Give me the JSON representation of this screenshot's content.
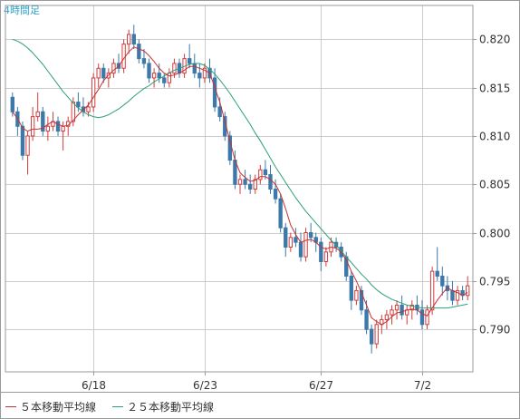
{
  "chart_data": {
    "type": "candlestick",
    "period_label": "4時間足",
    "x_tick_labels": [
      "6/18",
      "6/23",
      "6/27",
      "7/2"
    ],
    "x_tick_index": [
      16,
      38,
      61,
      81
    ],
    "y_ticks": [
      0.79,
      0.795,
      0.8,
      0.805,
      0.81,
      0.815,
      0.82
    ],
    "y_tick_labels": [
      "0.790",
      "0.795",
      "0.800",
      "0.805",
      "0.810",
      "0.815",
      "0.820"
    ],
    "ylim": [
      0.7856,
      0.8235
    ],
    "grid": true,
    "legend_position": "bottom-left",
    "colors": {
      "up": "#d23c3c",
      "down": "#3c78aa",
      "ma5": "#c83232",
      "ma25": "#2aa078",
      "grid": "#cccccc",
      "frame": "#9a9a9a"
    },
    "series": [
      {
        "name": "５本移動平均線",
        "color": "#c83232"
      },
      {
        "name": "２５本移動平均線",
        "color": "#2aa078"
      }
    ],
    "candles": [
      [
        0.814,
        0.8145,
        0.812,
        0.8125
      ],
      [
        0.8125,
        0.813,
        0.81,
        0.811
      ],
      [
        0.811,
        0.8115,
        0.8075,
        0.808
      ],
      [
        0.808,
        0.8105,
        0.806,
        0.81
      ],
      [
        0.81,
        0.813,
        0.8095,
        0.812
      ],
      [
        0.812,
        0.8145,
        0.8115,
        0.8125
      ],
      [
        0.8125,
        0.813,
        0.81,
        0.8105
      ],
      [
        0.8105,
        0.812,
        0.8095,
        0.811
      ],
      [
        0.811,
        0.8125,
        0.8105,
        0.8115
      ],
      [
        0.8115,
        0.812,
        0.81,
        0.8105
      ],
      [
        0.8105,
        0.8115,
        0.8085,
        0.811
      ],
      [
        0.811,
        0.812,
        0.81,
        0.8115
      ],
      [
        0.8115,
        0.814,
        0.811,
        0.8135
      ],
      [
        0.8135,
        0.8145,
        0.8125,
        0.813
      ],
      [
        0.813,
        0.814,
        0.812,
        0.8125
      ],
      [
        0.8125,
        0.8135,
        0.812,
        0.813
      ],
      [
        0.813,
        0.8165,
        0.8125,
        0.816
      ],
      [
        0.816,
        0.8175,
        0.815,
        0.817
      ],
      [
        0.817,
        0.8175,
        0.8155,
        0.816
      ],
      [
        0.816,
        0.817,
        0.815,
        0.8165
      ],
      [
        0.8165,
        0.818,
        0.816,
        0.8175
      ],
      [
        0.8175,
        0.8185,
        0.8165,
        0.817
      ],
      [
        0.817,
        0.82,
        0.8165,
        0.8195
      ],
      [
        0.8195,
        0.821,
        0.8185,
        0.8205
      ],
      [
        0.8205,
        0.8215,
        0.819,
        0.8195
      ],
      [
        0.8195,
        0.82,
        0.8175,
        0.818
      ],
      [
        0.818,
        0.819,
        0.817,
        0.8175
      ],
      [
        0.8175,
        0.818,
        0.8155,
        0.816
      ],
      [
        0.816,
        0.817,
        0.815,
        0.8165
      ],
      [
        0.8165,
        0.8175,
        0.8155,
        0.816
      ],
      [
        0.816,
        0.8165,
        0.815,
        0.8155
      ],
      [
        0.8155,
        0.817,
        0.815,
        0.8165
      ],
      [
        0.8165,
        0.818,
        0.816,
        0.8175
      ],
      [
        0.8175,
        0.818,
        0.816,
        0.8165
      ],
      [
        0.8165,
        0.8185,
        0.816,
        0.818
      ],
      [
        0.818,
        0.8195,
        0.817,
        0.8175
      ],
      [
        0.8175,
        0.8185,
        0.816,
        0.8165
      ],
      [
        0.8165,
        0.8175,
        0.815,
        0.816
      ],
      [
        0.816,
        0.8175,
        0.8155,
        0.817
      ],
      [
        0.817,
        0.818,
        0.8155,
        0.816
      ],
      [
        0.816,
        0.817,
        0.8125,
        0.813
      ],
      [
        0.813,
        0.814,
        0.8115,
        0.812
      ],
      [
        0.812,
        0.8125,
        0.8095,
        0.81
      ],
      [
        0.81,
        0.8105,
        0.807,
        0.8075
      ],
      [
        0.8075,
        0.8085,
        0.8045,
        0.805
      ],
      [
        0.805,
        0.806,
        0.804,
        0.8055
      ],
      [
        0.8055,
        0.8065,
        0.8045,
        0.805
      ],
      [
        0.805,
        0.806,
        0.804,
        0.8045
      ],
      [
        0.8045,
        0.806,
        0.804,
        0.8055
      ],
      [
        0.8055,
        0.807,
        0.805,
        0.8065
      ],
      [
        0.8065,
        0.8075,
        0.8055,
        0.806
      ],
      [
        0.806,
        0.807,
        0.804,
        0.8045
      ],
      [
        0.8045,
        0.8055,
        0.803,
        0.8035
      ],
      [
        0.8035,
        0.804,
        0.8,
        0.8005
      ],
      [
        0.8005,
        0.801,
        0.7975,
        0.7985
      ],
      [
        0.7985,
        0.8,
        0.798,
        0.7995
      ],
      [
        0.7995,
        0.8005,
        0.7985,
        0.799
      ],
      [
        0.799,
        0.8,
        0.797,
        0.7975
      ],
      [
        0.7975,
        0.8005,
        0.797,
        0.8
      ],
      [
        0.8,
        0.801,
        0.799,
        0.7995
      ],
      [
        0.7995,
        0.8,
        0.798,
        0.799
      ],
      [
        0.799,
        0.7995,
        0.796,
        0.797
      ],
      [
        0.797,
        0.7985,
        0.7965,
        0.798
      ],
      [
        0.798,
        0.7995,
        0.7975,
        0.799
      ],
      [
        0.799,
        0.7995,
        0.798,
        0.7985
      ],
      [
        0.7985,
        0.799,
        0.797,
        0.7975
      ],
      [
        0.7975,
        0.798,
        0.795,
        0.7955
      ],
      [
        0.7955,
        0.796,
        0.792,
        0.793
      ],
      [
        0.793,
        0.7945,
        0.7925,
        0.794
      ],
      [
        0.794,
        0.7945,
        0.7915,
        0.792
      ],
      [
        0.792,
        0.793,
        0.7895,
        0.79
      ],
      [
        0.79,
        0.7905,
        0.7875,
        0.7885
      ],
      [
        0.7885,
        0.791,
        0.788,
        0.7905
      ],
      [
        0.7905,
        0.7915,
        0.7895,
        0.791
      ],
      [
        0.791,
        0.792,
        0.79,
        0.7915
      ],
      [
        0.7915,
        0.7925,
        0.7905,
        0.792
      ],
      [
        0.792,
        0.793,
        0.791,
        0.7925
      ],
      [
        0.7925,
        0.7935,
        0.791,
        0.7915
      ],
      [
        0.7915,
        0.7925,
        0.7905,
        0.792
      ],
      [
        0.792,
        0.793,
        0.791,
        0.7925
      ],
      [
        0.7925,
        0.7935,
        0.7915,
        0.792
      ],
      [
        0.792,
        0.793,
        0.79,
        0.7905
      ],
      [
        0.7905,
        0.7925,
        0.79,
        0.792
      ],
      [
        0.792,
        0.7965,
        0.7915,
        0.796
      ],
      [
        0.796,
        0.7985,
        0.795,
        0.7955
      ],
      [
        0.7955,
        0.7965,
        0.7935,
        0.7945
      ],
      [
        0.7945,
        0.7955,
        0.793,
        0.794
      ],
      [
        0.794,
        0.795,
        0.7925,
        0.793
      ],
      [
        0.793,
        0.7945,
        0.7925,
        0.794
      ],
      [
        0.794,
        0.7945,
        0.793,
        0.7935
      ],
      [
        0.7935,
        0.7955,
        0.793,
        0.7945
      ]
    ],
    "ma5": [
      0.8125,
      0.8118,
      0.8108,
      0.8105,
      0.8107,
      0.8107,
      0.8108,
      0.8112,
      0.8115,
      0.8112,
      0.811,
      0.8111,
      0.8116,
      0.8122,
      0.8127,
      0.8132,
      0.814,
      0.8148,
      0.8157,
      0.8163,
      0.8168,
      0.8172,
      0.818,
      0.8187,
      0.8192,
      0.819,
      0.8188,
      0.8183,
      0.8177,
      0.817,
      0.8165,
      0.8162,
      0.8163,
      0.8165,
      0.8168,
      0.8172,
      0.8172,
      0.817,
      0.8168,
      0.8165,
      0.815,
      0.8135,
      0.8115,
      0.8095,
      0.8075,
      0.8062,
      0.8057,
      0.8053,
      0.8054,
      0.8058,
      0.8058,
      0.8055,
      0.805,
      0.804,
      0.8025,
      0.8008,
      0.7998,
      0.799,
      0.7992,
      0.7993,
      0.799,
      0.7985,
      0.7983,
      0.7985,
      0.7984,
      0.798,
      0.7972,
      0.796,
      0.795,
      0.7938,
      0.7925,
      0.7912,
      0.7908,
      0.7905,
      0.7908,
      0.7913,
      0.7917,
      0.7918,
      0.792,
      0.7921,
      0.792,
      0.7916,
      0.7914,
      0.7922,
      0.793,
      0.7937,
      0.7943,
      0.794,
      0.7938,
      0.7935,
      0.7938
    ],
    "ma25": [
      0.82,
      0.8198,
      0.8195,
      0.8191,
      0.8186,
      0.818,
      0.8174,
      0.8167,
      0.816,
      0.8153,
      0.8146,
      0.814,
      0.8134,
      0.8129,
      0.8125,
      0.8122,
      0.812,
      0.8119,
      0.812,
      0.8122,
      0.8125,
      0.8128,
      0.8132,
      0.8136,
      0.8141,
      0.8145,
      0.8149,
      0.8152,
      0.8156,
      0.8159,
      0.8162,
      0.8165,
      0.8168,
      0.817,
      0.8172,
      0.8174,
      0.8175,
      0.8175,
      0.8173,
      0.8169,
      0.8164,
      0.8158,
      0.8151,
      0.8144,
      0.8136,
      0.8128,
      0.812,
      0.8112,
      0.8103,
      0.8095,
      0.8086,
      0.8077,
      0.8068,
      0.806,
      0.8052,
      0.8044,
      0.8036,
      0.8029,
      0.8022,
      0.8016,
      0.801,
      0.8004,
      0.7998,
      0.7992,
      0.7987,
      0.7981,
      0.7975,
      0.7969,
      0.7963,
      0.7957,
      0.7952,
      0.7946,
      0.7941,
      0.7937,
      0.7934,
      0.7931,
      0.7929,
      0.7927,
      0.7925,
      0.7924,
      0.7923,
      0.7922,
      0.7922,
      0.7922,
      0.7922,
      0.7922,
      0.7922,
      0.7923,
      0.7924,
      0.7925,
      0.7926
    ]
  }
}
